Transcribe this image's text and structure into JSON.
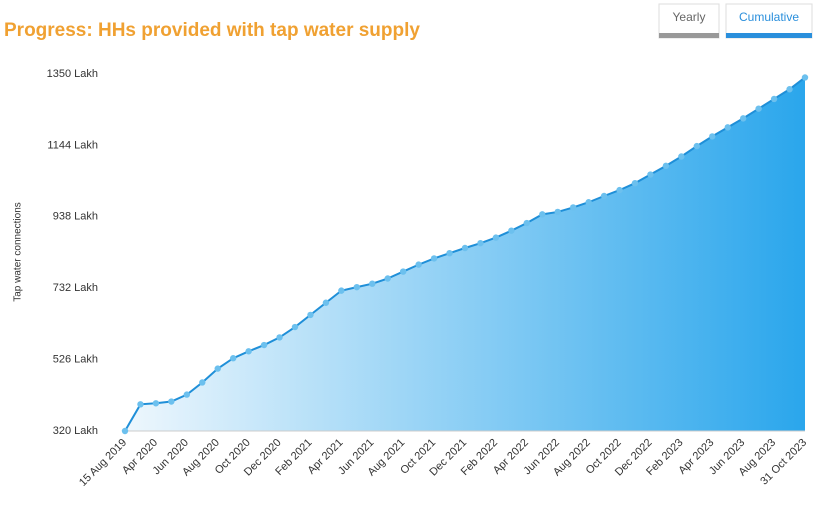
{
  "chart_data": {
    "type": "area",
    "title": "Progress: HHs provided with tap water supply",
    "buttons": [
      "Yearly",
      "Cumulative"
    ],
    "y_label": "Tap water connections",
    "categories": [
      "15 Aug 2019",
      null,
      "Apr 2020",
      null,
      "Jun 2020",
      null,
      "Aug 2020",
      null,
      "Oct 2020",
      null,
      "Dec 2020",
      null,
      "Feb 2021",
      null,
      "Apr 2021",
      null,
      "Jun 2021",
      null,
      "Aug 2021",
      null,
      "Oct 2021",
      null,
      "Dec 2021",
      null,
      "Feb 2022",
      null,
      "Apr 2022",
      null,
      "Jun 2022",
      null,
      "Aug 2022",
      null,
      "Oct 2022",
      null,
      "Dec 2022",
      null,
      "Feb 2023",
      null,
      "Apr 2023",
      null,
      "Jun 2023",
      null,
      "Aug 2023",
      null,
      "31 Oct 2023"
    ],
    "values": [
      320,
      397,
      400,
      405,
      425,
      460,
      500,
      530,
      550,
      568,
      590,
      620,
      655,
      690,
      725,
      735,
      745,
      760,
      780,
      800,
      818,
      833,
      848,
      862,
      878,
      898,
      920,
      945,
      952,
      965,
      980,
      998,
      1015,
      1035,
      1060,
      1085,
      1112,
      1142,
      1170,
      1196,
      1222,
      1250,
      1278,
      1306,
      1340
    ],
    "ylim": [
      320,
      1350
    ],
    "yticks": [
      {
        "value": 320,
        "label": "320 Lakh"
      },
      {
        "value": 526,
        "label": "526 Lakh"
      },
      {
        "value": 732,
        "label": "732 Lakh"
      },
      {
        "value": 938,
        "label": "938 Lakh"
      },
      {
        "value": 1144,
        "label": "1144 Lakh"
      },
      {
        "value": 1350,
        "label": "1350 Lakh"
      }
    ],
    "grid": false,
    "color": "#1f8fd8",
    "marker_color": "#6cc0ee",
    "area_colors": [
      "#eef7fd",
      "#2aa6ec"
    ]
  }
}
